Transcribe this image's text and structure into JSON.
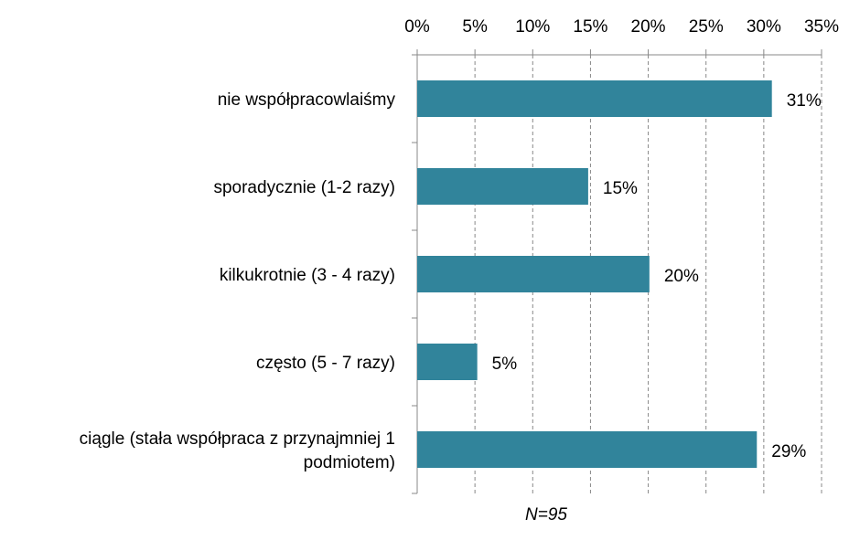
{
  "chart_data": {
    "type": "bar",
    "orientation": "horizontal",
    "categories": [
      "nie współpracowlaiśmy",
      "sporadycznie (1-2 razy)",
      "kilkukrotnie (3 - 4 razy)",
      "często (5 - 7 razy)",
      "ciągle (stała współpraca z przynajmniej 1 podmiotem)"
    ],
    "values": [
      30.7,
      14.8,
      20.1,
      5.2,
      29.4
    ],
    "value_labels": [
      "31%",
      "15%",
      "20%",
      "5%",
      "29%"
    ],
    "color": "#31849b",
    "xlim": [
      0,
      35
    ],
    "xticks": [
      {
        "value": 0,
        "label": "0%"
      },
      {
        "value": 5,
        "label": "5%"
      },
      {
        "value": 10,
        "label": "10%"
      },
      {
        "value": 15,
        "label": "15%"
      },
      {
        "value": 20,
        "label": "20%"
      },
      {
        "value": 25,
        "label": "25%"
      },
      {
        "value": 30,
        "label": "30%"
      },
      {
        "value": 35,
        "label": "35%"
      }
    ],
    "grid": true,
    "note": "N=95"
  }
}
